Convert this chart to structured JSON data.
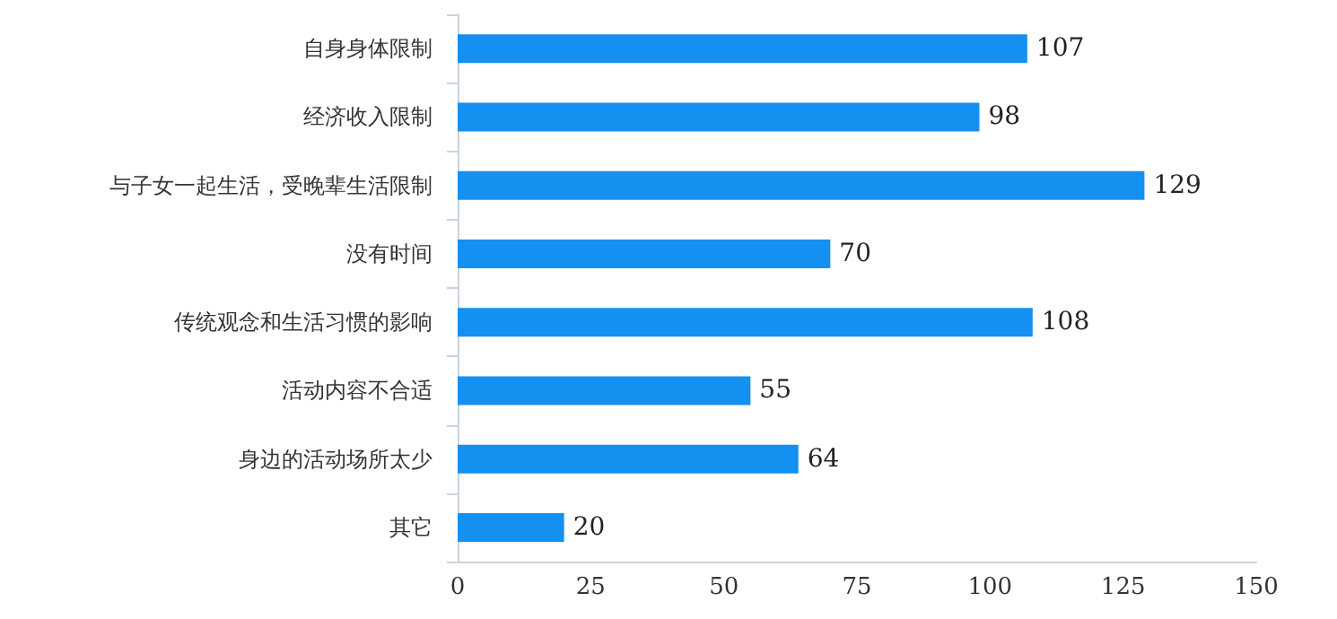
{
  "chart_data": {
    "type": "bar",
    "orientation": "horizontal",
    "categories": [
      "自身身体限制",
      "经济收入限制",
      "与子女一起生活，受晚辈生活限制",
      "没有时间",
      "传统观念和生活习惯的影响",
      "活动内容不合适",
      "身边的活动场所太少",
      "其它"
    ],
    "values": [
      107,
      98,
      129,
      70,
      108,
      55,
      64,
      20
    ],
    "color": "#1490f0",
    "xlim": [
      0,
      150
    ],
    "xticks": [
      0,
      25,
      50,
      75,
      100,
      125,
      150
    ],
    "data_labels": true,
    "grid": false
  }
}
